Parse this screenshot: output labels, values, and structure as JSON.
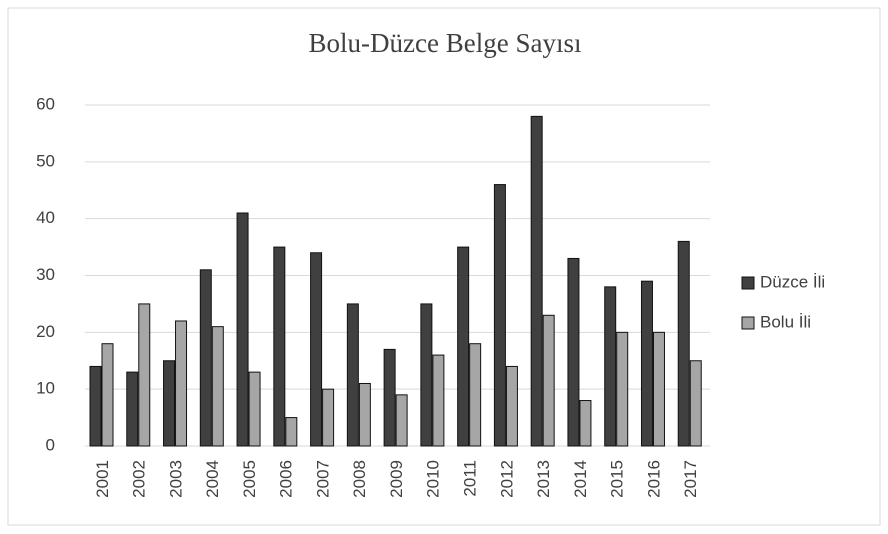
{
  "chart_data": {
    "type": "bar",
    "title": "Bolu-Düzce Belge Sayısı",
    "categories": [
      "2001",
      "2002",
      "2003",
      "2004",
      "2005",
      "2006",
      "2007",
      "2008",
      "2009",
      "2010",
      "2011",
      "2012",
      "2013",
      "2014",
      "2015",
      "2016",
      "2017"
    ],
    "series": [
      {
        "name": "Düzce İli",
        "color": "#404040",
        "values": [
          14,
          13,
          15,
          31,
          41,
          35,
          34,
          25,
          17,
          25,
          35,
          46,
          58,
          33,
          28,
          29,
          36
        ]
      },
      {
        "name": "Bolu İli",
        "color": "#a6a6a6",
        "values": [
          18,
          25,
          22,
          21,
          13,
          5,
          10,
          11,
          9,
          16,
          18,
          14,
          23,
          8,
          20,
          20,
          15
        ]
      }
    ],
    "ylim": [
      0,
      60
    ],
    "yticks": [
      0,
      10,
      20,
      30,
      40,
      50,
      60
    ],
    "grid": true,
    "legend": "right"
  }
}
